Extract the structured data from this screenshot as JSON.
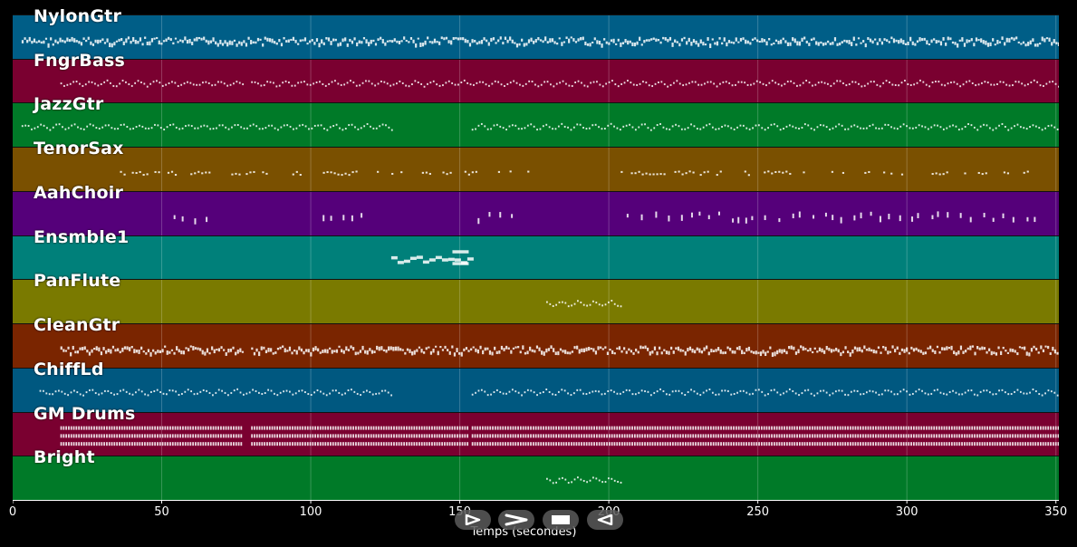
{
  "timeline": {
    "duration": 351,
    "xlabel": "Temps (secondes)",
    "ticks": [
      {
        "value": 0,
        "label": "0"
      },
      {
        "value": 50,
        "label": "50"
      },
      {
        "value": 100,
        "label": "100"
      },
      {
        "value": 150,
        "label": "150"
      },
      {
        "value": 200,
        "label": "200"
      },
      {
        "value": 250,
        "label": "250"
      },
      {
        "value": 300,
        "label": "300"
      },
      {
        "value": 350,
        "label": "350"
      }
    ]
  },
  "transport": {
    "buttons": [
      {
        "name": "play-button",
        "icon": "play-icon"
      },
      {
        "name": "fast-forward-button",
        "icon": "chevron-right-icon"
      },
      {
        "name": "stop-button",
        "icon": "stop-icon"
      },
      {
        "name": "rewind-button",
        "icon": "rewind-icon"
      }
    ]
  },
  "tracks": [
    {
      "name": "NylonGtr",
      "color": "#005e87",
      "segments": [
        [
          3,
          351
        ]
      ],
      "style": "dense"
    },
    {
      "name": "FngrBass",
      "color": "#7a0030",
      "segments": [
        [
          16,
          77
        ],
        [
          80,
          351
        ]
      ],
      "style": "sparse"
    },
    {
      "name": "JazzGtr",
      "color": "#007a28",
      "segments": [
        [
          3,
          127
        ],
        [
          154,
          351
        ]
      ],
      "style": "sparse"
    },
    {
      "name": "TenorSax",
      "color": "#7a5000",
      "segments": [
        [
          36,
          175
        ],
        [
          204,
          345
        ]
      ],
      "style": "dots"
    },
    {
      "name": "AahChoir",
      "color": "#55007a",
      "segments": [
        [
          54,
          67
        ],
        [
          104,
          117
        ],
        [
          156,
          169
        ],
        [
          206,
          345
        ]
      ],
      "style": "dashes"
    },
    {
      "name": "Ensmble1",
      "color": "#00807a",
      "segments": [
        [
          127,
          153
        ]
      ],
      "style": "block"
    },
    {
      "name": "PanFlute",
      "color": "#7a7a00",
      "segments": [
        [
          179,
          204
        ]
      ],
      "style": "sparse"
    },
    {
      "name": "CleanGtr",
      "color": "#7a2500",
      "segments": [
        [
          16,
          77
        ],
        [
          80,
          351
        ]
      ],
      "style": "dense"
    },
    {
      "name": "ChiffLd",
      "color": "#005880",
      "segments": [
        [
          9,
          127
        ],
        [
          154,
          351
        ]
      ],
      "style": "sparse"
    },
    {
      "name": "GM Drums",
      "color": "#7a0030",
      "segments": [
        [
          16,
          77
        ],
        [
          80,
          153
        ],
        [
          154,
          351
        ]
      ],
      "style": "drums"
    },
    {
      "name": "Bright",
      "color": "#007a28",
      "segments": [
        [
          179,
          204
        ]
      ],
      "style": "sparse"
    }
  ]
}
